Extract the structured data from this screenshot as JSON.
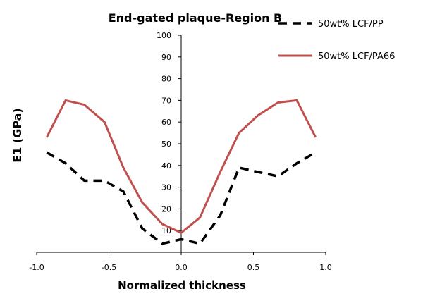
{
  "chart_data": {
    "type": "line",
    "title": "End-gated plaque-Region B",
    "xlabel": "Normalized thickness",
    "ylabel": "E1 (GPa)",
    "xlim": [
      -1.0,
      1.0
    ],
    "ylim": [
      0,
      100
    ],
    "x_ticks": [
      "-1.0",
      "-0.5",
      "0.0",
      "0.5",
      "1.0"
    ],
    "x_tick_values": [
      -1.0,
      -0.5,
      0.0,
      0.5,
      1.0
    ],
    "y_ticks": [
      "10",
      "20",
      "30",
      "40",
      "50",
      "60",
      "70",
      "80",
      "90",
      "100"
    ],
    "y_tick_values": [
      10,
      20,
      30,
      40,
      50,
      60,
      70,
      80,
      90,
      100
    ],
    "grid": false,
    "legend_position": "top-right",
    "series": [
      {
        "name": "50wt% LCF/PP",
        "color": "#000000",
        "style": "dashed",
        "x": [
          -0.93,
          -0.8,
          -0.67,
          -0.53,
          -0.4,
          -0.27,
          -0.13,
          0.0,
          0.13,
          0.27,
          0.4,
          0.53,
          0.67,
          0.8,
          0.93
        ],
        "y": [
          46,
          41,
          33,
          33,
          28,
          11,
          4,
          6,
          4,
          17,
          39,
          37,
          35,
          41,
          46
        ]
      },
      {
        "name": "50wt% LCF/PA66",
        "color": "#c0504d",
        "style": "solid",
        "x": [
          -0.93,
          -0.8,
          -0.67,
          -0.53,
          -0.4,
          -0.27,
          -0.13,
          0.0,
          0.13,
          0.27,
          0.4,
          0.53,
          0.67,
          0.8,
          0.93
        ],
        "y": [
          53,
          70,
          68,
          60,
          39,
          23,
          13,
          9,
          16,
          37,
          55,
          63,
          69,
          70,
          53
        ]
      }
    ]
  }
}
